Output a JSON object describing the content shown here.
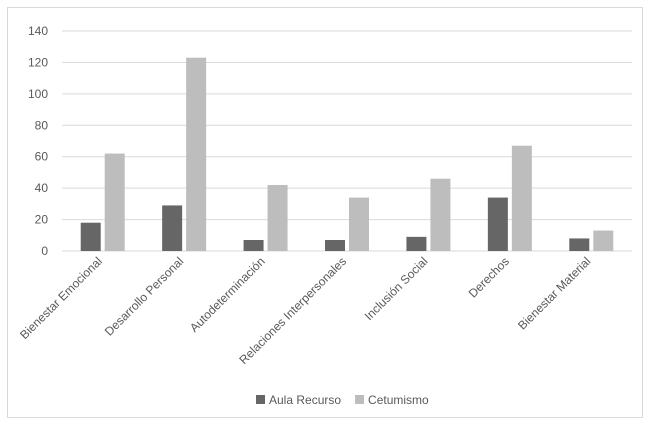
{
  "chart_data": {
    "type": "bar",
    "categories": [
      "Bienestar Emocional",
      "Desarrollo Personal",
      "Autodeterminación",
      "Relaciones Interpersonales",
      "Inclusión Social",
      "Derechos",
      "Bienestar Material"
    ],
    "series": [
      {
        "name": "Aula Recurso",
        "values": [
          18,
          29,
          7,
          7,
          9,
          34,
          8
        ],
        "color": "#666666"
      },
      {
        "name": "Cetumismo",
        "values": [
          62,
          123,
          42,
          34,
          46,
          67,
          13
        ],
        "color": "#bdbdbd"
      }
    ],
    "ylim": [
      0,
      140
    ],
    "yticks": [
      "0",
      "20",
      "40",
      "60",
      "80",
      "100",
      "120",
      "140"
    ],
    "grid": true,
    "legend_position": "bottom",
    "title": "",
    "xlabel": "",
    "ylabel": ""
  }
}
